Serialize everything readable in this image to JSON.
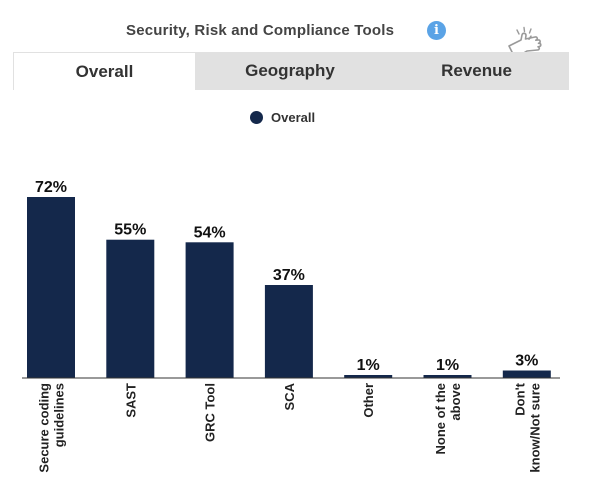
{
  "header": {
    "title": "Security, Risk and Compliance Tools",
    "info_icon": "info-icon",
    "info_glyph": "i",
    "pointer_icon": "hand-pointer-icon"
  },
  "tabs": [
    {
      "label": "Overall",
      "active": true
    },
    {
      "label": "Geography",
      "active": false
    },
    {
      "label": "Revenue",
      "active": false
    }
  ],
  "legend": {
    "label": "Overall",
    "color": "#14284b"
  },
  "colors": {
    "bar": "#14284b",
    "accent_info": "#5aa3e6",
    "tab_inactive_bg": "#e1e1e1",
    "baseline": "#333333"
  },
  "chart_data": {
    "type": "bar",
    "title": "Security, Risk and Compliance Tools",
    "xlabel": "",
    "ylabel": "",
    "ylim": [
      0,
      72
    ],
    "grid": false,
    "legend_position": "top-center",
    "categories": [
      [
        "Secure coding",
        "guidelines"
      ],
      [
        "SAST"
      ],
      [
        "GRC Tool"
      ],
      [
        "SCA"
      ],
      [
        "Other"
      ],
      [
        "None of the",
        "above"
      ],
      [
        "Don't",
        "know/Not sure"
      ]
    ],
    "series": [
      {
        "name": "Overall",
        "values": [
          72,
          55,
          54,
          37,
          1,
          1,
          3
        ],
        "labels": [
          "72%",
          "55%",
          "54%",
          "37%",
          "1%",
          "1%",
          "3%"
        ]
      }
    ]
  }
}
